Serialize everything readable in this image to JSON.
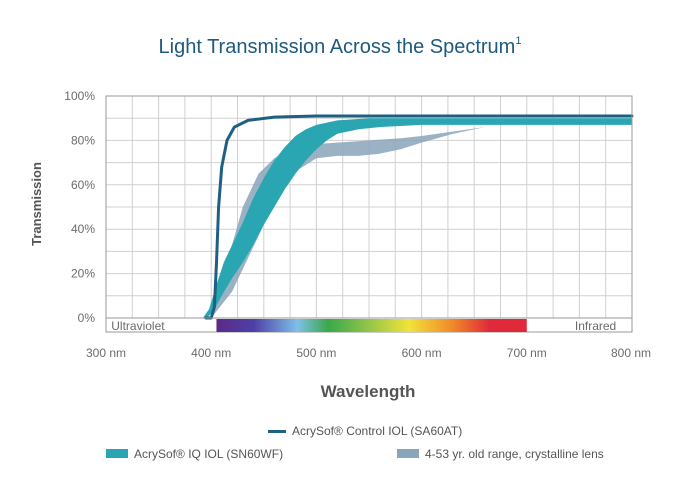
{
  "chart_data": {
    "type": "line",
    "title": "Light Transmission Across the Spectrum",
    "title_superscript": "1",
    "xlabel": "Wavelength",
    "ylabel": "Transmission",
    "xlim": [
      300,
      800
    ],
    "ylim": [
      0,
      100
    ],
    "x_ticks": [
      {
        "value": 300,
        "label": "300 nm"
      },
      {
        "value": 400,
        "label": "400 nm"
      },
      {
        "value": 500,
        "label": "500 nm"
      },
      {
        "value": 600,
        "label": "600 nm"
      },
      {
        "value": 700,
        "label": "700 nm"
      },
      {
        "value": 800,
        "label": "800 nm"
      }
    ],
    "y_ticks": [
      {
        "value": 0,
        "label": "0%"
      },
      {
        "value": 20,
        "label": "20%"
      },
      {
        "value": 40,
        "label": "40%"
      },
      {
        "value": 60,
        "label": "60%"
      },
      {
        "value": 80,
        "label": "80%"
      },
      {
        "value": 100,
        "label": "100%"
      }
    ],
    "grid": true,
    "spectrum_band": {
      "left_label": "Ultraviolet",
      "right_label": "Infrared",
      "visible_range": [
        405,
        700
      ]
    },
    "series": [
      {
        "name": "AcrySof® Control IOL (SA60AT)",
        "kind": "line",
        "color": "#1f5f82",
        "points": [
          [
            395,
            0
          ],
          [
            400,
            0
          ],
          [
            403,
            5
          ],
          [
            405,
            25
          ],
          [
            407,
            50
          ],
          [
            410,
            68
          ],
          [
            415,
            80
          ],
          [
            422,
            86
          ],
          [
            435,
            89
          ],
          [
            460,
            90.5
          ],
          [
            500,
            91
          ],
          [
            600,
            91
          ],
          [
            700,
            91
          ],
          [
            800,
            91
          ]
        ]
      },
      {
        "name": "AcrySof® IQ IOL (SN60WF)",
        "kind": "band",
        "color": "#2aa6b3",
        "upper": [
          [
            392,
            0
          ],
          [
            398,
            4
          ],
          [
            405,
            15
          ],
          [
            412,
            25
          ],
          [
            420,
            33
          ],
          [
            430,
            43
          ],
          [
            440,
            54
          ],
          [
            450,
            63
          ],
          [
            460,
            71
          ],
          [
            470,
            77
          ],
          [
            480,
            82
          ],
          [
            490,
            85
          ],
          [
            500,
            87
          ],
          [
            520,
            89
          ],
          [
            550,
            90
          ],
          [
            600,
            90
          ],
          [
            700,
            90
          ],
          [
            800,
            90
          ]
        ],
        "lower": [
          [
            392,
            0
          ],
          [
            396,
            0
          ],
          [
            402,
            3
          ],
          [
            410,
            10
          ],
          [
            420,
            18
          ],
          [
            430,
            25
          ],
          [
            440,
            33
          ],
          [
            450,
            42
          ],
          [
            460,
            50
          ],
          [
            470,
            58
          ],
          [
            480,
            65
          ],
          [
            490,
            71
          ],
          [
            500,
            76
          ],
          [
            510,
            80
          ],
          [
            520,
            83
          ],
          [
            540,
            85
          ],
          [
            560,
            86
          ],
          [
            600,
            87
          ],
          [
            700,
            87
          ],
          [
            800,
            87
          ]
        ]
      },
      {
        "name": "4-53 yr. old range, crystalline lens",
        "kind": "band",
        "color": "#8aa4bb",
        "upper": [
          [
            400,
            0
          ],
          [
            415,
            25
          ],
          [
            430,
            50
          ],
          [
            445,
            65
          ],
          [
            460,
            72
          ],
          [
            475,
            76
          ],
          [
            490,
            78
          ],
          [
            520,
            79
          ],
          [
            550,
            80
          ],
          [
            580,
            81
          ],
          [
            600,
            82
          ],
          [
            630,
            84
          ],
          [
            660,
            86
          ],
          [
            700,
            88
          ],
          [
            800,
            88
          ]
        ],
        "lower": [
          [
            400,
            0
          ],
          [
            420,
            12
          ],
          [
            440,
            32
          ],
          [
            460,
            52
          ],
          [
            480,
            66
          ],
          [
            500,
            72
          ],
          [
            520,
            73
          ],
          [
            540,
            73
          ],
          [
            560,
            74
          ],
          [
            580,
            76
          ],
          [
            600,
            79
          ],
          [
            630,
            83
          ],
          [
            660,
            86
          ],
          [
            700,
            88
          ],
          [
            800,
            88
          ]
        ]
      }
    ],
    "legend_position": "bottom"
  }
}
